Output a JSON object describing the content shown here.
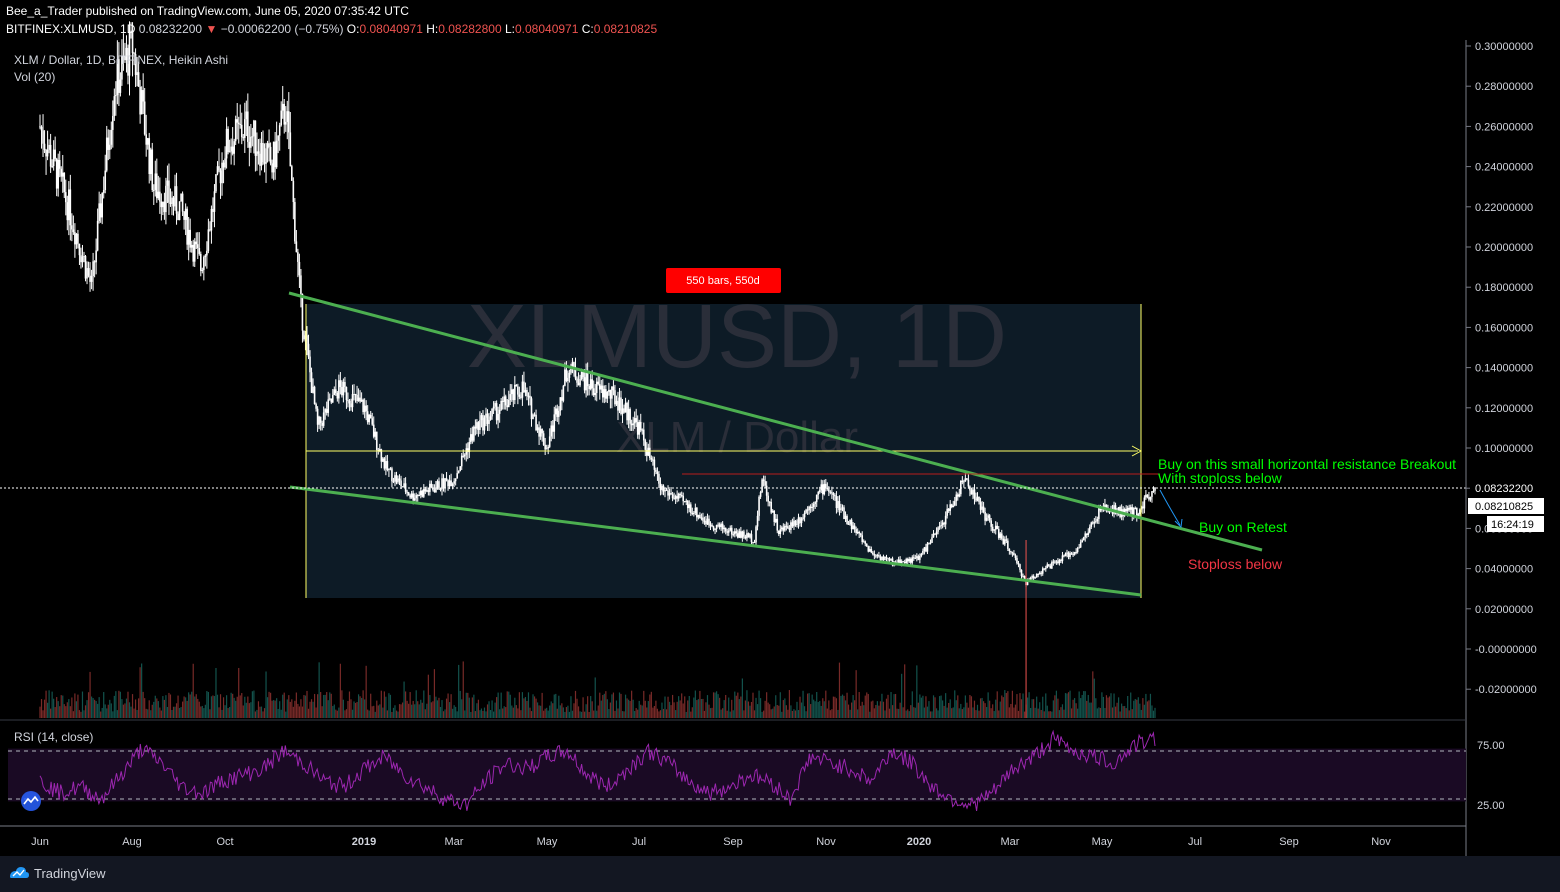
{
  "header": {
    "line1": "Bee_a_Trader published on TradingView.com, June 05, 2020 07:35:42 UTC",
    "symbol": "BITFINEX:XLMUSD, 1D",
    "price": "0.08232200",
    "arrow": "▼",
    "change": "−0.00062200 (−0.75%)",
    "o_label": "O:",
    "o_value": "0.08040971",
    "h_label": "H:",
    "h_value": "0.08282800",
    "l_label": "L:",
    "l_value": "0.08040971",
    "c_label": "C:",
    "c_value": "0.08210825"
  },
  "legend": {
    "series": "XLM / Dollar, 1D, BITFINEX, Heikin Ashi",
    "volume": "Vol (20)"
  },
  "watermark": {
    "title": "XLMUSD, 1D",
    "subtitle": "XLM / Dollar"
  },
  "annotations": {
    "range_box": "550 bars, 550d",
    "breakout": "Buy on this small horizontal resistance Breakout",
    "stoploss_hint": "With stoploss below",
    "retest": "Buy on Retest",
    "stoploss": "Stoploss below"
  },
  "price_labels": {
    "last": "0.08232200",
    "close": "0.08210825",
    "countdown": "16:24:19"
  },
  "rsi_legend": "RSI (14, close)",
  "footer": {
    "brand": "TradingView"
  },
  "colors": {
    "background": "#000000",
    "candle": "#ffffff",
    "trendline": "#4caf50",
    "box_fill": "#0d1b26",
    "box_lines": "#ffff66",
    "resistance": "#b71c1c",
    "rsi_line": "#9c27b0",
    "rsi_band": "#1a0a24",
    "label_red": "#ff0000",
    "text_green": "#00ff00",
    "text_red": "#f23645"
  },
  "chart_data": {
    "type": "candlestick",
    "series": [
      {
        "name": "XLM / Dollar, 1D, BITFINEX, Heikin Ashi",
        "x": [
          "2018-06-01",
          "2018-06-20",
          "2018-07-05",
          "2018-07-20",
          "2018-08-01",
          "2018-08-15",
          "2018-09-01",
          "2018-09-15",
          "2018-10-01",
          "2018-10-15",
          "2018-11-01",
          "2018-11-10",
          "2018-11-20",
          "2018-12-01",
          "2018-12-15",
          "2019-01-01",
          "2019-01-15",
          "2019-02-01",
          "2019-02-15",
          "2019-03-01",
          "2019-03-15",
          "2019-04-01",
          "2019-04-15",
          "2019-05-01",
          "2019-05-15",
          "2019-06-01",
          "2019-06-15",
          "2019-07-01",
          "2019-07-15",
          "2019-08-01",
          "2019-08-15",
          "2019-09-01",
          "2019-09-15",
          "2019-09-20",
          "2019-10-01",
          "2019-10-15",
          "2019-11-01",
          "2019-11-10",
          "2019-12-01",
          "2019-12-15",
          "2020-01-01",
          "2020-01-15",
          "2020-02-01",
          "2020-02-15",
          "2020-03-01",
          "2020-03-12",
          "2020-03-20",
          "2020-04-01",
          "2020-04-15",
          "2020-05-01",
          "2020-05-15",
          "2020-05-25",
          "2020-06-05"
        ],
        "y": [
          0.26,
          0.22,
          0.18,
          0.28,
          0.3,
          0.23,
          0.22,
          0.19,
          0.25,
          0.26,
          0.24,
          0.27,
          0.17,
          0.11,
          0.13,
          0.12,
          0.09,
          0.076,
          0.08,
          0.085,
          0.11,
          0.12,
          0.13,
          0.1,
          0.14,
          0.13,
          0.125,
          0.11,
          0.08,
          0.072,
          0.063,
          0.058,
          0.055,
          0.085,
          0.058,
          0.065,
          0.082,
          0.07,
          0.048,
          0.043,
          0.045,
          0.06,
          0.085,
          0.065,
          0.05,
          0.033,
          0.038,
          0.043,
          0.05,
          0.07,
          0.068,
          0.068,
          0.0823
        ]
      }
    ],
    "volume": "Vol (20)",
    "y_ticks": [
      "0.30000000",
      "0.28000000",
      "0.26000000",
      "0.24000000",
      "0.22000000",
      "0.20000000",
      "0.18000000",
      "0.16000000",
      "0.14000000",
      "0.12000000",
      "0.10000000",
      "0.08000000",
      "0.06000000",
      "0.04000000",
      "0.02000000",
      "-0.00000000",
      "-0.02000000"
    ],
    "x_ticks": [
      "Jun",
      "Aug",
      "Oct",
      "2019",
      "Mar",
      "May",
      "Jul",
      "Sep",
      "Nov",
      "2020",
      "Mar",
      "May",
      "Jul",
      "Sep",
      "Nov"
    ],
    "rsi": {
      "label": "RSI (14, close)",
      "ticks": [
        "75.00",
        "25.00"
      ],
      "bands": [
        70,
        30
      ],
      "values": [
        45,
        35,
        40,
        30,
        50,
        72,
        60,
        40,
        35,
        45,
        50,
        55,
        70,
        60,
        45,
        40,
        55,
        65,
        50,
        40,
        30,
        25,
        45,
        60,
        55,
        65,
        70,
        50,
        40,
        55,
        70,
        60,
        45,
        35,
        40,
        50,
        45,
        30,
        65,
        60,
        55,
        45,
        70,
        60,
        40,
        30,
        25,
        35,
        55,
        65,
        80,
        70,
        65,
        60,
        75,
        80
      ]
    },
    "ylim": [
      -0.025,
      0.305
    ],
    "grid": false,
    "legend": "top-left"
  }
}
